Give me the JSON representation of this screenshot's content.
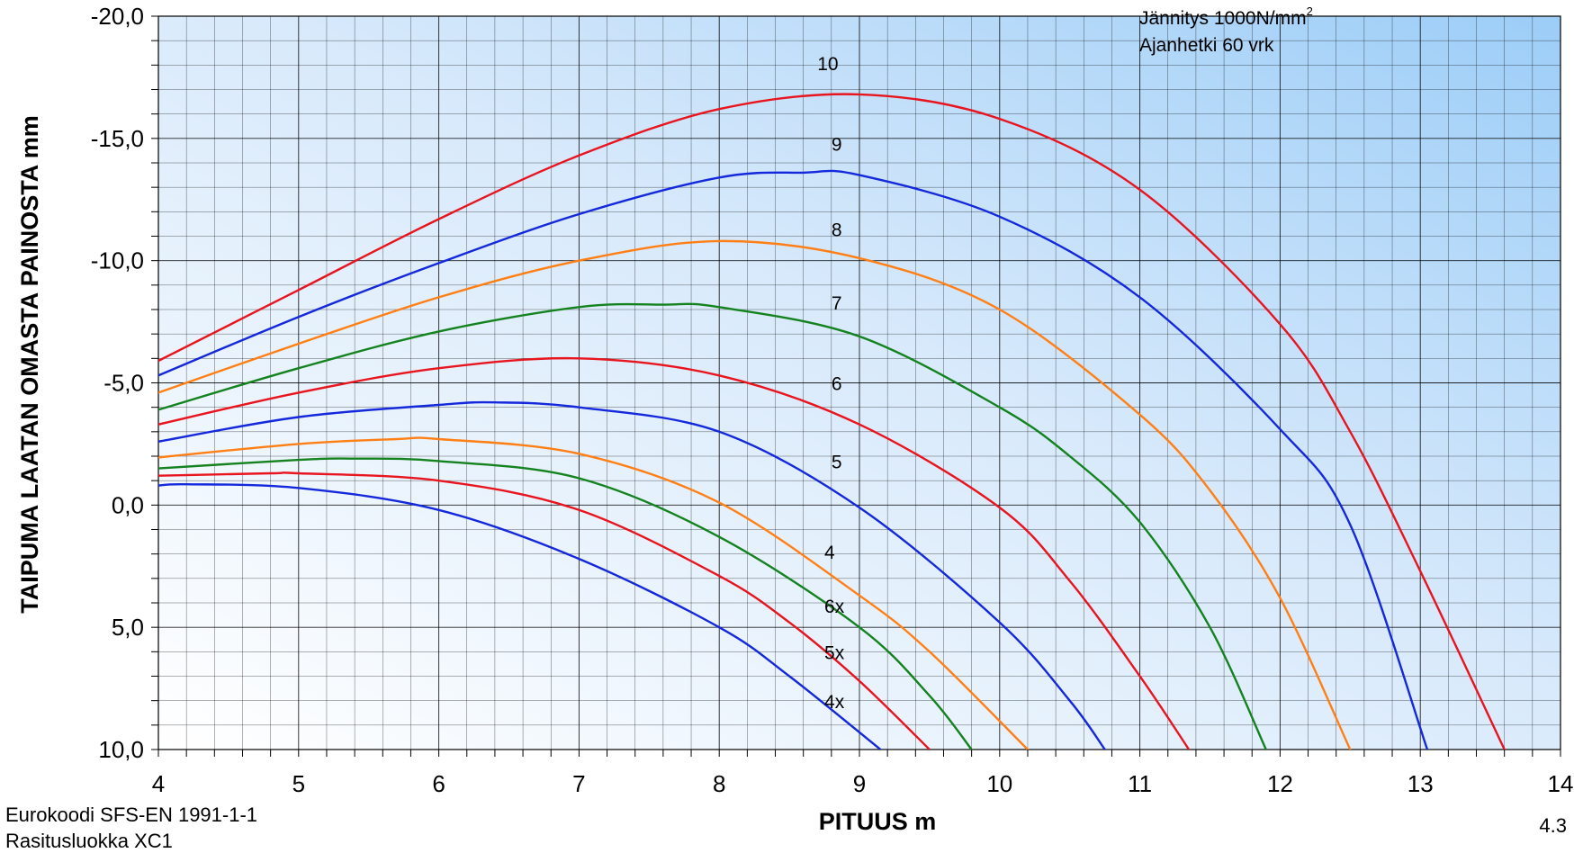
{
  "chart_data": {
    "type": "line",
    "xlabel": "PITUUS m",
    "ylabel": "TAIPUMA LAATAN OMASTA PAINOSTA mm",
    "xlim": [
      4,
      14
    ],
    "ylim": [
      10,
      -20
    ],
    "y_inverted": true,
    "grid": true,
    "x_ticks": [
      "4",
      "5",
      "6",
      "7",
      "8",
      "9",
      "10",
      "11",
      "12",
      "13",
      "14"
    ],
    "y_ticks": [
      "-20,0",
      "-15,0",
      "-10,0",
      "-5,0",
      "0,0",
      "5,0",
      "10,0"
    ],
    "annotations": {
      "stress_prefix": "Jännitys 1000N/mm",
      "stress_sup": "2",
      "time": "Ajanhetki 60 vrk"
    },
    "series": [
      {
        "name": "10",
        "color": "#e8141e",
        "x": [
          4.0,
          5.0,
          6.0,
          7.0,
          8.0,
          9.0,
          10.0,
          11.0,
          12.0,
          12.5,
          13.0,
          13.6
        ],
        "y": [
          -5.9,
          -8.8,
          -11.7,
          -14.3,
          -16.2,
          -16.8,
          -15.8,
          -12.9,
          -7.4,
          -3.0,
          2.7,
          10.0
        ]
      },
      {
        "name": "9",
        "color": "#1428dc",
        "x": [
          4.0,
          5.0,
          6.0,
          7.0,
          8.0,
          8.6,
          9.0,
          10.0,
          11.0,
          12.0,
          12.5,
          13.05
        ],
        "y": [
          -5.3,
          -7.7,
          -9.9,
          -11.9,
          -13.4,
          -13.6,
          -13.5,
          -11.8,
          -8.5,
          -3.1,
          0.8,
          10.0
        ]
      },
      {
        "name": "8",
        "color": "#ff7f14",
        "x": [
          4.0,
          5.0,
          6.0,
          7.0,
          8.0,
          9.0,
          10.0,
          11.0,
          11.5,
          12.0,
          12.5
        ],
        "y": [
          -4.6,
          -6.6,
          -8.5,
          -10.0,
          -10.8,
          -10.1,
          -8.0,
          -3.7,
          -0.6,
          3.8,
          10.0
        ]
      },
      {
        "name": "7",
        "color": "#14821e",
        "x": [
          4.0,
          5.0,
          6.0,
          7.0,
          7.6,
          8.0,
          9.0,
          10.0,
          10.5,
          11.0,
          11.5,
          11.9
        ],
        "y": [
          -3.9,
          -5.6,
          -7.1,
          -8.1,
          -8.2,
          -8.1,
          -6.9,
          -4.0,
          -2.0,
          0.7,
          5.0,
          10.0
        ]
      },
      {
        "name": "6",
        "color": "#e8141e",
        "x": [
          4.0,
          5.0,
          6.0,
          7.0,
          8.0,
          9.0,
          10.0,
          10.5,
          11.0,
          11.35
        ],
        "y": [
          -3.3,
          -4.6,
          -5.6,
          -6.0,
          -5.3,
          -3.3,
          0.1,
          3.1,
          7.0,
          10.0
        ]
      },
      {
        "name": "5",
        "color": "#1428dc",
        "x": [
          4.0,
          5.0,
          6.0,
          6.4,
          7.0,
          8.0,
          9.0,
          10.0,
          10.5,
          10.75
        ],
        "y": [
          -2.6,
          -3.6,
          -4.1,
          -4.2,
          -4.0,
          -3.0,
          0.1,
          4.8,
          8.0,
          10.0
        ]
      },
      {
        "name": "4",
        "color": "#ff7f14",
        "x": [
          4.0,
          5.0,
          5.7,
          6.0,
          7.0,
          8.0,
          9.0,
          9.5,
          10.2
        ],
        "y": [
          -1.95,
          -2.5,
          -2.7,
          -2.7,
          -2.1,
          -0.1,
          3.7,
          6.0,
          10.0
        ]
      },
      {
        "name": "6x",
        "color": "#14821e",
        "x": [
          4.0,
          5.0,
          5.4,
          6.0,
          7.0,
          8.0,
          9.0,
          9.5,
          9.8
        ],
        "y": [
          -1.5,
          -1.85,
          -1.9,
          -1.8,
          -1.1,
          1.3,
          5.0,
          7.8,
          10.0
        ]
      },
      {
        "name": "5x",
        "color": "#e8141e",
        "x": [
          4.0,
          4.8,
          5.0,
          6.0,
          7.0,
          8.0,
          8.5,
          9.0,
          9.5
        ],
        "y": [
          -1.2,
          -1.3,
          -1.3,
          -1.0,
          0.2,
          2.9,
          4.8,
          7.2,
          10.0
        ]
      },
      {
        "name": "4x",
        "color": "#1428dc",
        "x": [
          4.0,
          4.2,
          5.0,
          6.0,
          7.0,
          8.0,
          8.5,
          9.15
        ],
        "y": [
          -0.8,
          -0.85,
          -0.7,
          0.2,
          2.2,
          5.0,
          7.0,
          10.0
        ]
      }
    ],
    "labels": [
      {
        "text": "10",
        "x": 8.7,
        "y": -17.8
      },
      {
        "text": "9",
        "x": 8.8,
        "y": -14.5
      },
      {
        "text": "8",
        "x": 8.8,
        "y": -11.0
      },
      {
        "text": "7",
        "x": 8.8,
        "y": -8.0
      },
      {
        "text": "6",
        "x": 8.8,
        "y": -4.7
      },
      {
        "text": "5",
        "x": 8.8,
        "y": -1.5
      },
      {
        "text": "4",
        "x": 8.75,
        "y": 2.2
      },
      {
        "text": "6x",
        "x": 8.75,
        "y": 4.4
      },
      {
        "text": "5x",
        "x": 8.75,
        "y": 6.3
      },
      {
        "text": "4x",
        "x": 8.75,
        "y": 8.3
      }
    ]
  },
  "footer": {
    "line1": "Eurokoodi SFS-EN 1991-1-1",
    "line2": "Rasitusluokka XC1",
    "page": "4.3"
  }
}
